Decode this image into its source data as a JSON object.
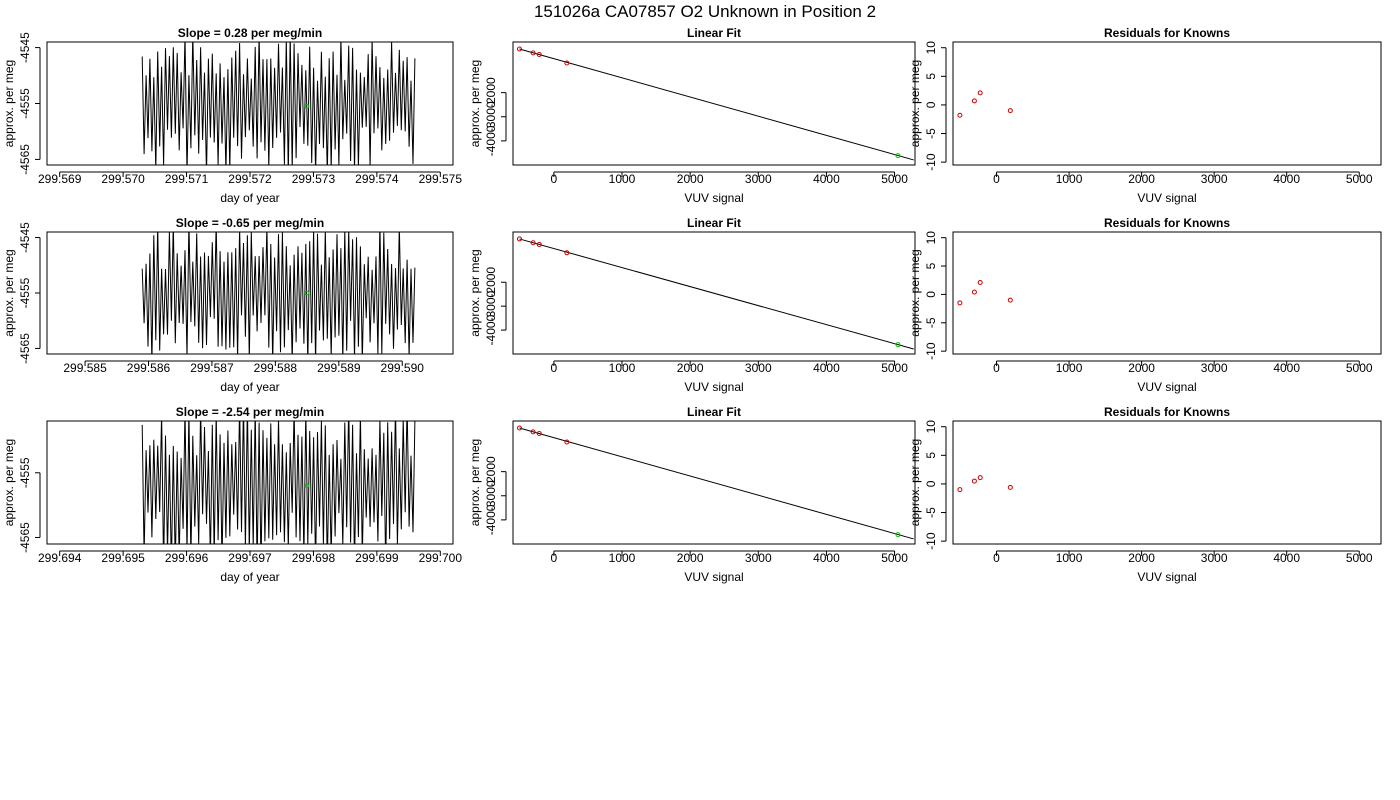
{
  "figure_title": "151026a      CA07857   O2 Unknown in Position  2",
  "chart_data": [
    {
      "type": "line",
      "title": "Slope =  0.28  per meg/min",
      "xlabel": "day of year",
      "ylabel": "approx. per meg",
      "xlim": [
        299.5688,
        299.5752
      ],
      "ylim": [
        -4566,
        -4544
      ],
      "xticks": [
        "299.569",
        "299.570",
        "299.571",
        "299.572",
        "299.573",
        "299.574",
        "299.575"
      ],
      "xtick_values": [
        299.569,
        299.57,
        299.571,
        299.572,
        299.573,
        299.574,
        299.575
      ],
      "yticks": [
        "-4545",
        "-4555",
        "-4565"
      ],
      "ytick_values": [
        -4545,
        -4555,
        -4565
      ],
      "series": [
        {
          "x_start": 299.5703,
          "x_end": 299.5746,
          "cycles": 70,
          "y_center": -4555
        }
      ],
      "highlight_point": {
        "x": 299.5729,
        "y": -4555.5,
        "color": "#00c000"
      }
    },
    {
      "type": "scatter",
      "title": "Linear Fit",
      "xlabel": "VUV signal",
      "ylabel": "approx. per meg",
      "xlim": [
        -600,
        5300
      ],
      "ylim": [
        -5000,
        100
      ],
      "xticks": [
        "0",
        "1000",
        "2000",
        "3000",
        "4000",
        "5000"
      ],
      "xtick_values": [
        0,
        1000,
        2000,
        3000,
        4000,
        5000
      ],
      "yticks": [
        "-2000",
        "-3000",
        "-4000"
      ],
      "ytick_values": [
        -2000,
        -3000,
        -4000
      ],
      "known_points": {
        "x": [
          -505,
          -305,
          -215,
          190
        ],
        "y": [
          -190,
          -350,
          -420,
          -770
        ],
        "color": "#cc0000"
      },
      "unknown_point": {
        "x": 5050,
        "y": -4610,
        "color": "#00c000"
      },
      "fit_line": {
        "x": [
          -505,
          5280
        ],
        "y": [
          -190,
          -4790
        ]
      }
    },
    {
      "type": "scatter",
      "title": "Residuals for Knowns",
      "xlabel": "VUV signal",
      "ylabel": "approx. per meg",
      "xlim": [
        -600,
        5300
      ],
      "ylim": [
        -10.5,
        11
      ],
      "xticks": [
        "0",
        "1000",
        "2000",
        "3000",
        "4000",
        "5000"
      ],
      "xtick_values": [
        0,
        1000,
        2000,
        3000,
        4000,
        5000
      ],
      "yticks": [
        "10",
        "5",
        "0",
        "-5",
        "-10"
      ],
      "ytick_values": [
        10,
        5,
        0,
        -5,
        -10
      ],
      "points": {
        "x": [
          -505,
          -305,
          -225,
          190
        ],
        "y": [
          -1.8,
          0.7,
          2.1,
          -1.0
        ],
        "color": "#cc0000"
      }
    },
    {
      "type": "line",
      "title": "Slope =  -0.65  per meg/min",
      "xlabel": "day of year",
      "ylabel": "approx. per meg",
      "xlim": [
        299.5844,
        299.5908
      ],
      "ylim": [
        -4566,
        -4544
      ],
      "xticks": [
        "299.585",
        "299.586",
        "299.587",
        "299.588",
        "299.589",
        "299.590"
      ],
      "xtick_values": [
        299.585,
        299.586,
        299.587,
        299.588,
        299.589,
        299.59
      ],
      "yticks": [
        "-4545",
        "-4555",
        "-4565"
      ],
      "ytick_values": [
        -4545,
        -4555,
        -4565
      ],
      "series": [
        {
          "x_start": 299.5859,
          "x_end": 299.5902,
          "cycles": 70,
          "y_center": -4555
        }
      ],
      "highlight_point": {
        "x": 299.5885,
        "y": -4555,
        "color": "#00c000"
      }
    },
    {
      "type": "scatter",
      "title": "Linear Fit",
      "xlabel": "VUV signal",
      "ylabel": "approx. per meg",
      "xlim": [
        -600,
        5300
      ],
      "ylim": [
        -5000,
        100
      ],
      "xticks": [
        "0",
        "1000",
        "2000",
        "3000",
        "4000",
        "5000"
      ],
      "xtick_values": [
        0,
        1000,
        2000,
        3000,
        4000,
        5000
      ],
      "yticks": [
        "-2000",
        "-3000",
        "-4000"
      ],
      "ytick_values": [
        -2000,
        -3000,
        -4000
      ],
      "known_points": {
        "x": [
          -505,
          -305,
          -215,
          190
        ],
        "y": [
          -190,
          -350,
          -420,
          -770
        ],
        "color": "#cc0000"
      },
      "unknown_point": {
        "x": 5050,
        "y": -4610,
        "color": "#00c000"
      },
      "fit_line": {
        "x": [
          -505,
          5280
        ],
        "y": [
          -190,
          -4790
        ]
      }
    },
    {
      "type": "scatter",
      "title": "Residuals for Knowns",
      "xlabel": "VUV signal",
      "ylabel": "approx. per meg",
      "xlim": [
        -600,
        5300
      ],
      "ylim": [
        -10.5,
        11
      ],
      "xticks": [
        "0",
        "1000",
        "2000",
        "3000",
        "4000",
        "5000"
      ],
      "xtick_values": [
        0,
        1000,
        2000,
        3000,
        4000,
        5000
      ],
      "yticks": [
        "10",
        "5",
        "0",
        "-5",
        "-10"
      ],
      "ytick_values": [
        10,
        5,
        0,
        -5,
        -10
      ],
      "points": {
        "x": [
          -505,
          -305,
          -225,
          190
        ],
        "y": [
          -1.5,
          0.4,
          2.1,
          -1.0
        ],
        "color": "#cc0000"
      }
    },
    {
      "type": "line",
      "title": "Slope =  -2.54  per meg/min",
      "xlabel": "day of year",
      "ylabel": "approx. per meg",
      "xlim": [
        299.6938,
        299.7002
      ],
      "ylim": [
        -4566,
        -4547
      ],
      "xticks": [
        "299.694",
        "299.695",
        "299.696",
        "299.697",
        "299.698",
        "299.699",
        "299.700"
      ],
      "xtick_values": [
        299.694,
        299.695,
        299.696,
        299.697,
        299.698,
        299.699,
        299.7
      ],
      "yticks": [
        "-4555",
        "-4565"
      ],
      "ytick_values": [
        -4555,
        -4565
      ],
      "series": [
        {
          "x_start": 299.6953,
          "x_end": 299.6996,
          "cycles": 70,
          "y_center": -4557
        }
      ],
      "highlight_point": {
        "x": 299.6979,
        "y": -4557,
        "color": "#00c000"
      }
    },
    {
      "type": "scatter",
      "title": "Linear Fit",
      "xlabel": "VUV signal",
      "ylabel": "approx. per meg",
      "xlim": [
        -600,
        5300
      ],
      "ylim": [
        -5000,
        100
      ],
      "xticks": [
        "0",
        "1000",
        "2000",
        "3000",
        "4000",
        "5000"
      ],
      "xtick_values": [
        0,
        1000,
        2000,
        3000,
        4000,
        5000
      ],
      "yticks": [
        "-2000",
        "-3000",
        "-4000"
      ],
      "ytick_values": [
        -2000,
        -3000,
        -4000
      ],
      "known_points": {
        "x": [
          -505,
          -305,
          -215,
          190
        ],
        "y": [
          -190,
          -350,
          -420,
          -770
        ],
        "color": "#cc0000"
      },
      "unknown_point": {
        "x": 5050,
        "y": -4610,
        "color": "#00c000"
      },
      "fit_line": {
        "x": [
          -505,
          5280
        ],
        "y": [
          -190,
          -4790
        ]
      }
    },
    {
      "type": "scatter",
      "title": "Residuals for Knowns",
      "xlabel": "VUV signal",
      "ylabel": "approx. per meg",
      "xlim": [
        -600,
        5300
      ],
      "ylim": [
        -10.5,
        11
      ],
      "xticks": [
        "0",
        "1000",
        "2000",
        "3000",
        "4000",
        "5000"
      ],
      "xtick_values": [
        0,
        1000,
        2000,
        3000,
        4000,
        5000
      ],
      "yticks": [
        "10",
        "5",
        "0",
        "-5",
        "-10"
      ],
      "ytick_values": [
        10,
        5,
        0,
        -5,
        -10
      ],
      "points": {
        "x": [
          -505,
          -305,
          -225,
          190
        ],
        "y": [
          -1.0,
          0.5,
          1.1,
          -0.6
        ],
        "color": "#cc0000"
      }
    }
  ]
}
